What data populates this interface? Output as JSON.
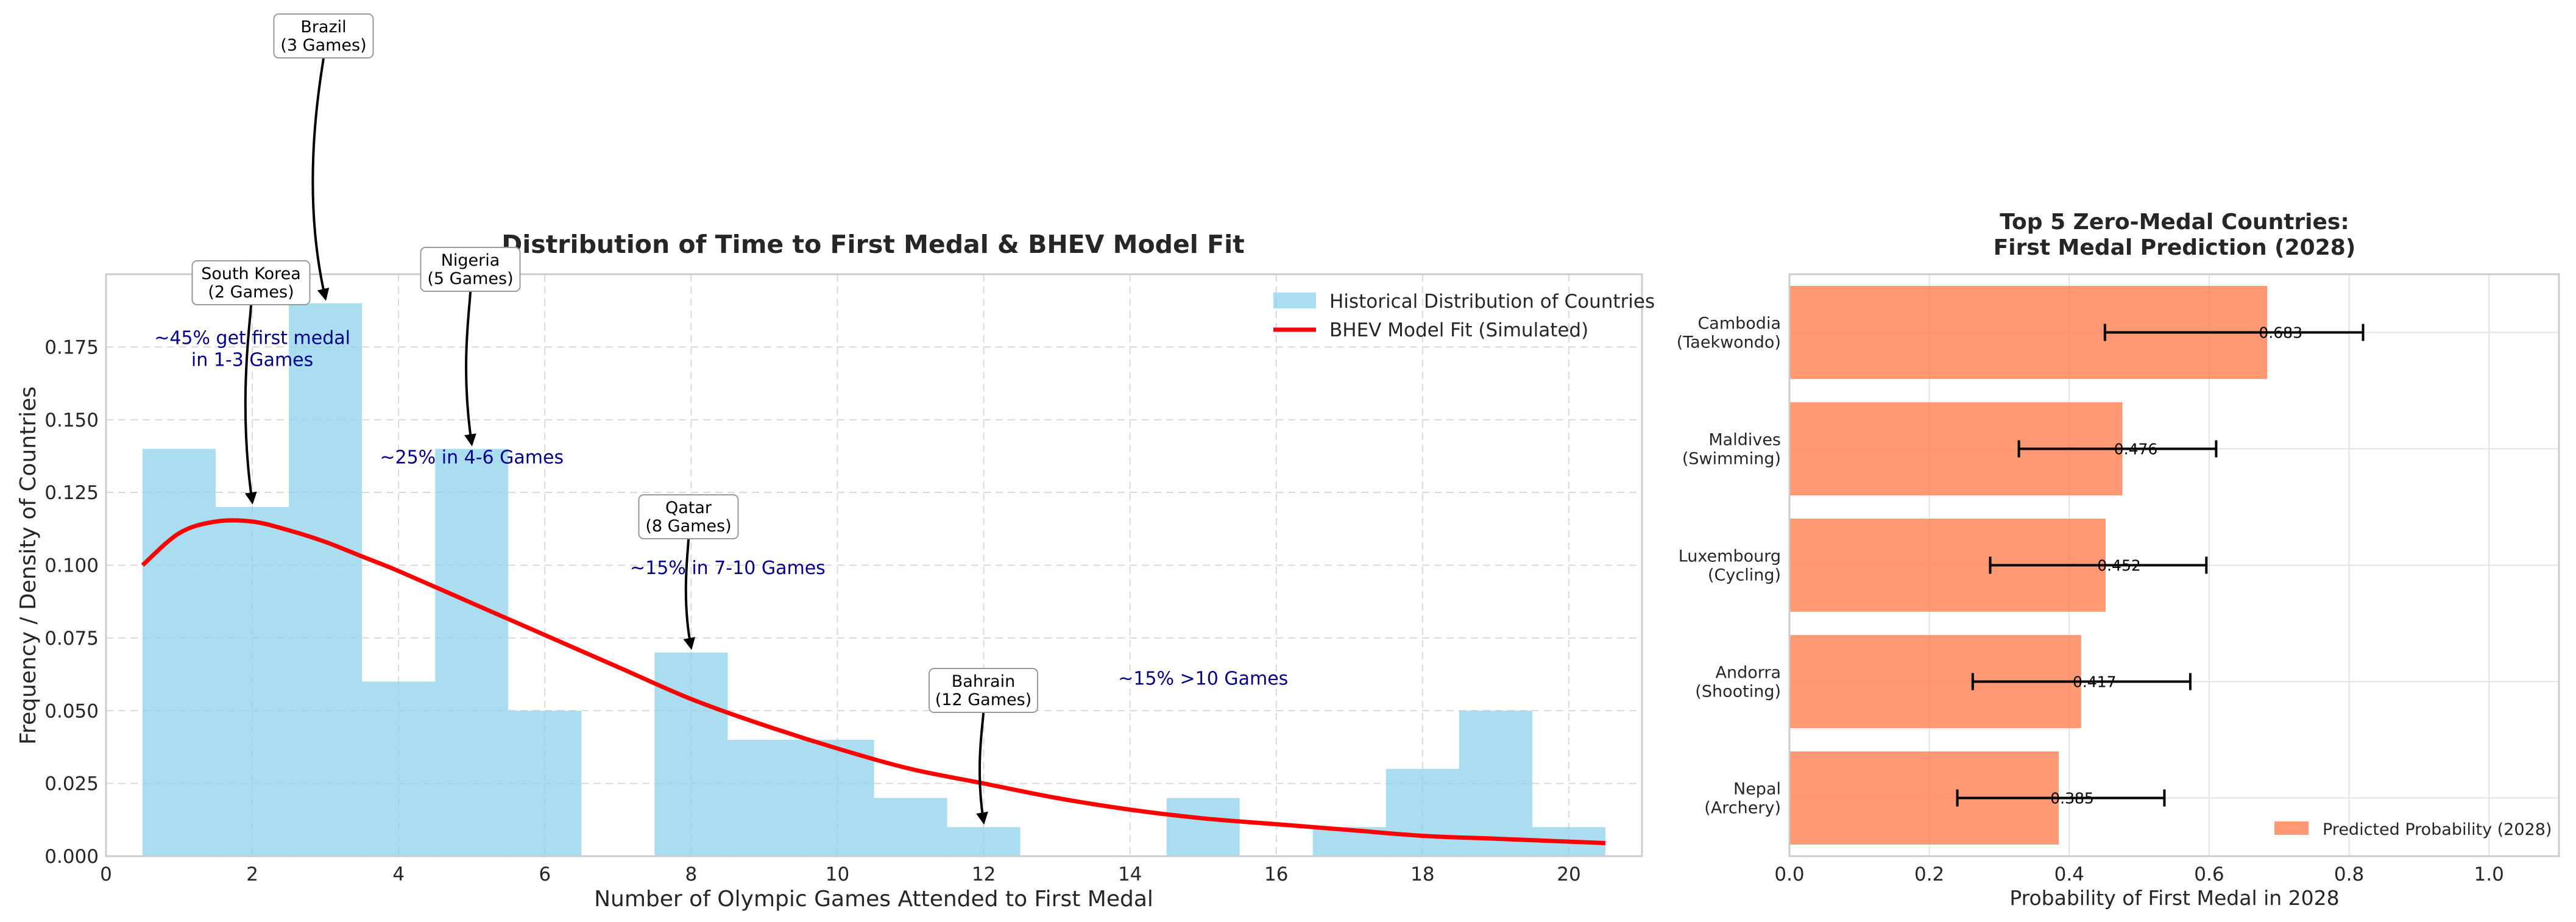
{
  "chart_data": [
    {
      "type": "bar",
      "title": "Distribution of Time to First Medal & BHEV Model Fit",
      "xlabel": "Number of Olympic Games Attended to First Medal",
      "ylabel": "Frequency / Density of Countries",
      "xlim": [
        0,
        21
      ],
      "ylim": [
        0,
        0.2
      ],
      "xticks": [
        0,
        2,
        4,
        6,
        8,
        10,
        12,
        14,
        16,
        18,
        20
      ],
      "xtick_labels": [
        "0",
        "2",
        "4",
        "6",
        "8",
        "10",
        "12",
        "14",
        "16",
        "18",
        "20"
      ],
      "yticks": [
        0,
        0.025,
        0.05,
        0.075,
        0.1,
        0.125,
        0.15,
        0.175
      ],
      "ytick_labels": [
        "0.000",
        "0.025",
        "0.050",
        "0.075",
        "0.100",
        "0.125",
        "0.150",
        "0.175"
      ],
      "grid": true,
      "legend_position": "top-right",
      "histogram": {
        "name": "Historical Distribution of Countries",
        "color": "#87CEEB",
        "bin_width": 1,
        "bin_starts": [
          0.5,
          1.5,
          2.5,
          3.5,
          4.5,
          5.5,
          6.5,
          7.5,
          8.5,
          9.5,
          10.5,
          11.5,
          12.5,
          13.5,
          14.5,
          15.5,
          16.5,
          17.5,
          18.5,
          19.5
        ],
        "values": [
          0.14,
          0.12,
          0.19,
          0.06,
          0.14,
          0.05,
          0.0,
          0.07,
          0.04,
          0.04,
          0.02,
          0.01,
          0.0,
          0.0,
          0.02,
          0.0,
          0.01,
          0.03,
          0.05,
          0.01
        ]
      },
      "fit": {
        "name": "BHEV Model Fit (Simulated)",
        "color": "#FF0000",
        "x": [
          0.5,
          1.0,
          1.5,
          2.0,
          2.5,
          3.0,
          3.5,
          4.0,
          5.0,
          6.0,
          7.0,
          8.0,
          9.0,
          10.0,
          11.0,
          12.0,
          13.0,
          14.0,
          15.0,
          16.0,
          17.0,
          18.0,
          19.0,
          20.0,
          20.5
        ],
        "y": [
          0.1,
          0.111,
          0.115,
          0.115,
          0.112,
          0.108,
          0.103,
          0.098,
          0.087,
          0.076,
          0.065,
          0.054,
          0.045,
          0.037,
          0.03,
          0.025,
          0.02,
          0.016,
          0.013,
          0.011,
          0.009,
          0.007,
          0.006,
          0.005,
          0.0045
        ]
      },
      "annotations": [
        {
          "label": "Brazil\n(3 Games)",
          "x": 3,
          "y": 0.19,
          "line1": "Brazil",
          "line2": "(3 Games)"
        },
        {
          "label": "South Korea\n(2 Games)",
          "x": 2,
          "y": 0.12,
          "line1": "South Korea",
          "line2": "(2 Games)"
        },
        {
          "label": "Nigeria\n(5 Games)",
          "x": 5,
          "y": 0.14,
          "line1": "Nigeria",
          "line2": "(5 Games)"
        },
        {
          "label": "Qatar\n(8 Games)",
          "x": 8,
          "y": 0.07,
          "line1": "Qatar",
          "line2": "(8 Games)"
        },
        {
          "label": "Bahrain\n(12 Games)",
          "x": 12,
          "y": 0.01,
          "line1": "Bahrain",
          "line2": "(12 Games)"
        }
      ],
      "text_notes": [
        {
          "line1": "~45% get first medal",
          "line2": "in 1-3 Games",
          "x": 2,
          "y": 0.176
        },
        {
          "line1": "~25% in 4-6 Games",
          "line2": "",
          "x": 5,
          "y": 0.135
        },
        {
          "line1": "~15% in 7-10 Games",
          "line2": "",
          "x": 8.5,
          "y": 0.097
        },
        {
          "line1": "~15% >10 Games",
          "line2": "",
          "x": 15,
          "y": 0.059
        }
      ]
    },
    {
      "type": "bar",
      "orientation": "horizontal",
      "title": "Top 5 Zero-Medal Countries:\nFirst Medal Prediction (2028)",
      "title_line1": "Top 5 Zero-Medal Countries:",
      "title_line2": "First Medal Prediction (2028)",
      "xlabel": "Probability of First Medal in 2028",
      "xlim": [
        0,
        1.1
      ],
      "xticks": [
        0,
        0.2,
        0.4,
        0.6,
        0.8,
        1.0
      ],
      "xtick_labels": [
        "0.0",
        "0.2",
        "0.4",
        "0.6",
        "0.8",
        "1.0"
      ],
      "grid": true,
      "legend_position": "bottom-right",
      "series_name": "Predicted Probability (2028)",
      "color": "#FF7F50",
      "categories": [
        "Cambodia\n(Taekwondo)",
        "Maldives\n(Swimming)",
        "Luxembourg\n(Cycling)",
        "Andorra\n(Shooting)",
        "Nepal\n(Archery)"
      ],
      "category_line1": [
        "Cambodia",
        "Maldives",
        "Luxembourg",
        "Andorra",
        "Nepal"
      ],
      "category_line2": [
        "(Taekwondo)",
        "(Swimming)",
        "(Cycling)",
        "(Shooting)",
        "(Archery)"
      ],
      "values": [
        0.683,
        0.476,
        0.452,
        0.417,
        0.385
      ],
      "value_labels": [
        "0.683",
        "0.476",
        "0.452",
        "0.417",
        "0.385"
      ],
      "error_low": [
        0.451,
        0.328,
        0.287,
        0.262,
        0.24
      ],
      "error_high": [
        0.82,
        0.61,
        0.596,
        0.573,
        0.536
      ]
    }
  ]
}
